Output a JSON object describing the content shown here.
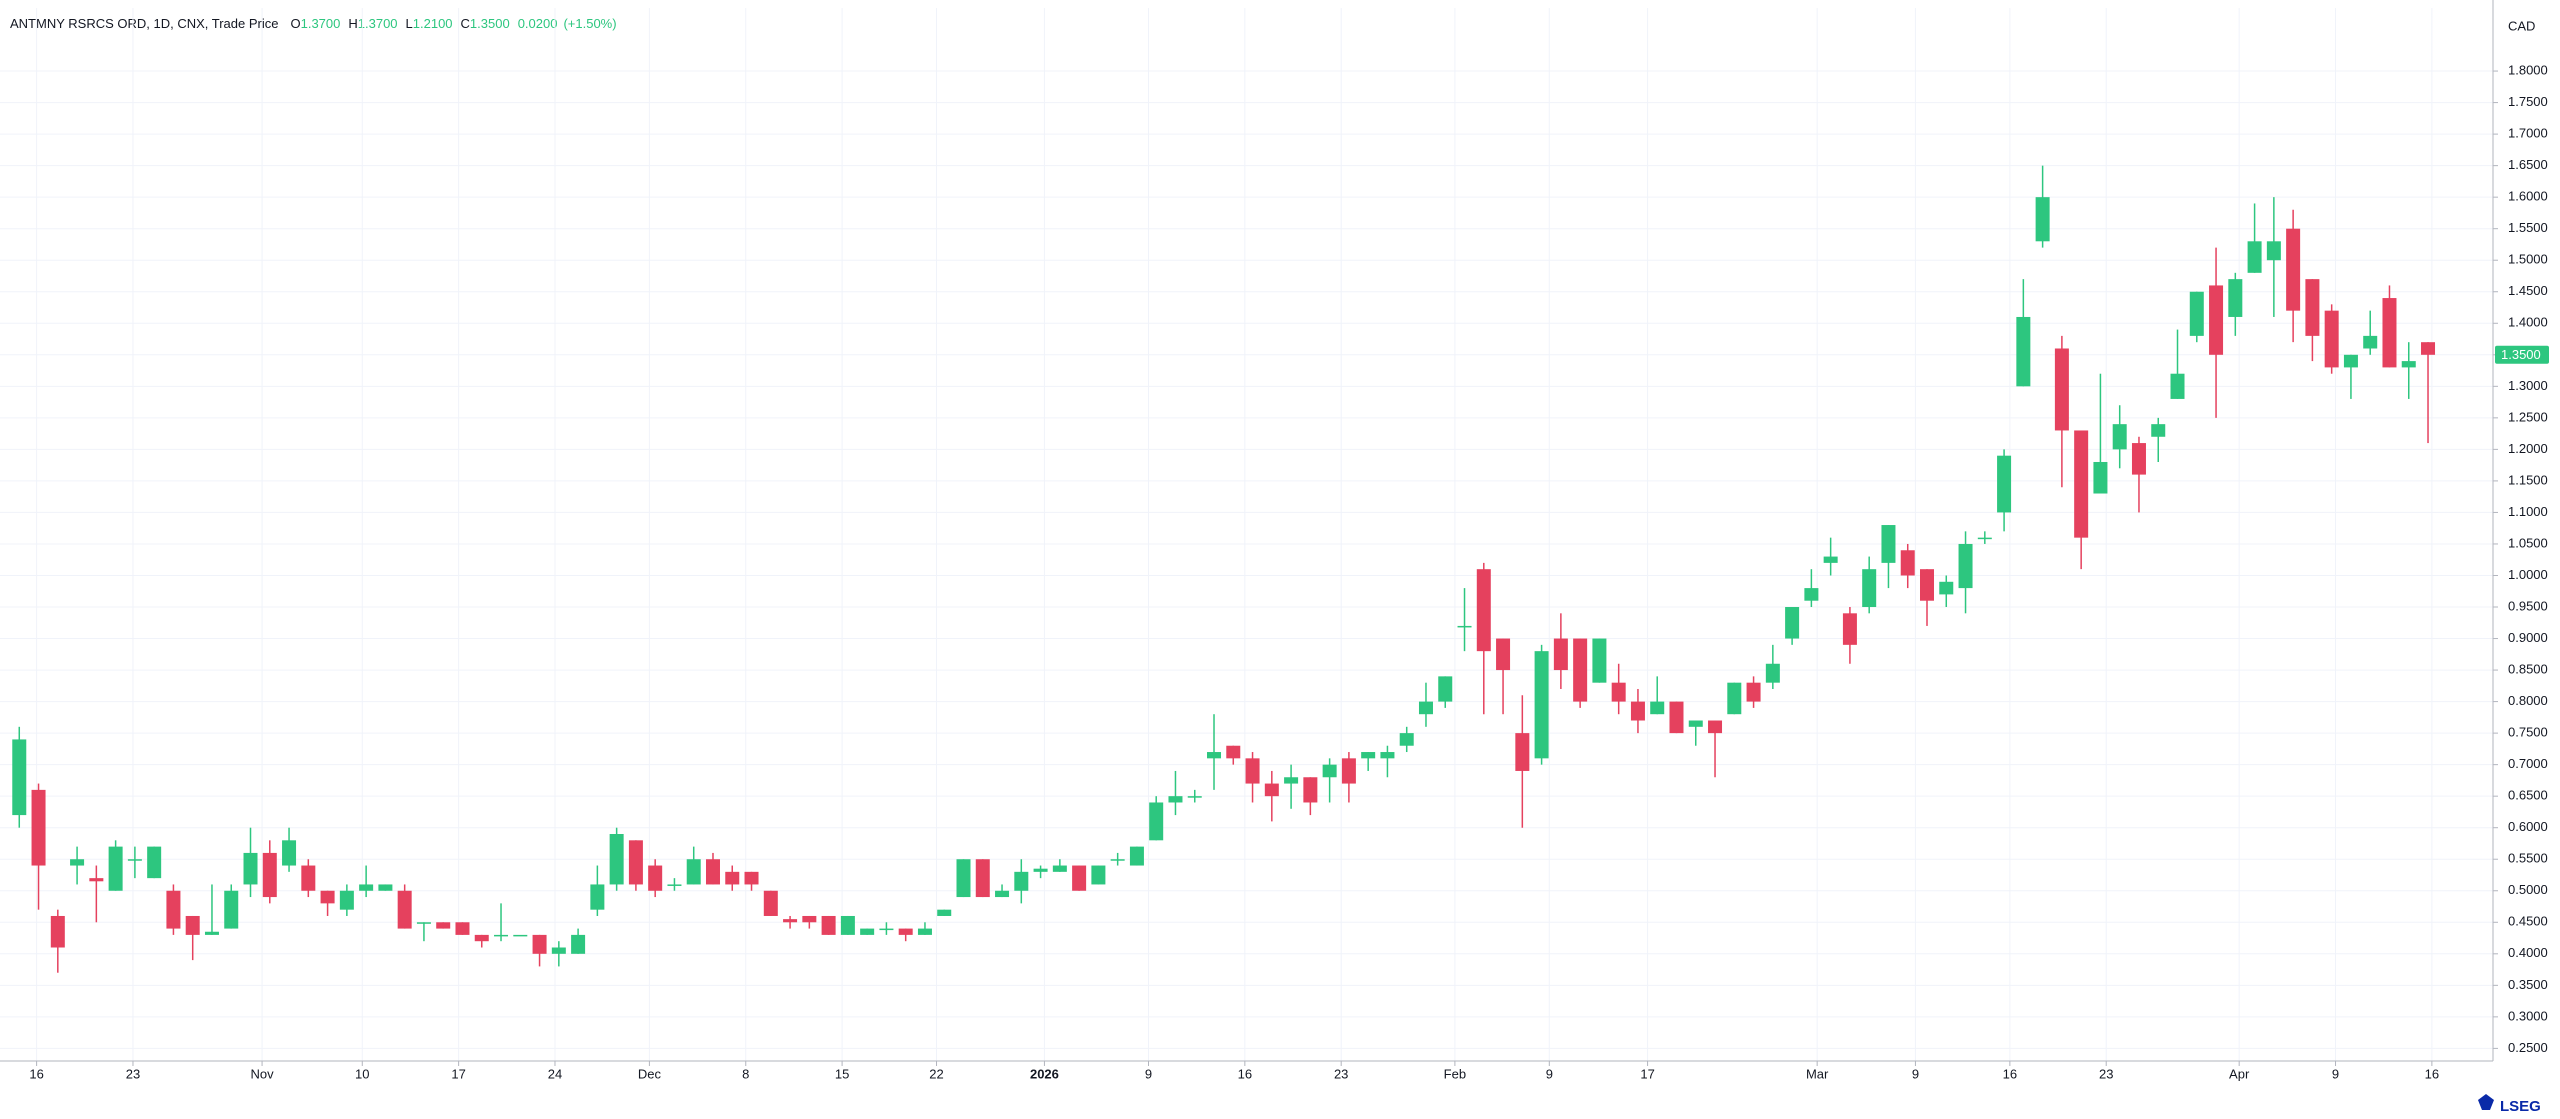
{
  "header": {
    "title": "ANTMNY RSRCS ORD, 1D, CNX, Trade Price",
    "ohlc": [
      {
        "key": "O",
        "value": "1.3700"
      },
      {
        "key": "H",
        "value": "1.3700"
      },
      {
        "key": "L",
        "value": "1.2100"
      },
      {
        "key": "C",
        "value": "1.3500"
      }
    ],
    "change": "0.0200",
    "change_pct": "(+1.50%)"
  },
  "currency": "CAD",
  "logo": "LSEG",
  "chart_data": {
    "type": "candlestick",
    "up_color": "#2dc67f",
    "down_color": "#e5415e",
    "grid": true,
    "open": [
      0.62,
      0.66,
      0.46,
      0.54,
      0.52,
      0.5,
      0.55,
      0.52,
      0.5,
      0.46,
      0.43,
      0.44,
      0.51,
      0.56,
      0.54,
      0.54,
      0.5,
      0.47,
      0.5,
      0.5,
      0.5,
      0.45,
      0.45,
      0.45,
      0.43,
      0.43,
      0.43,
      0.43,
      0.4,
      0.4,
      0.47,
      0.51,
      0.58,
      0.54,
      0.51,
      0.51,
      0.55,
      0.53,
      0.53,
      0.5,
      0.455,
      0.46,
      0.46,
      0.43,
      0.43,
      0.44,
      0.44,
      0.43,
      0.46,
      0.49,
      0.55,
      0.49,
      0.5,
      0.53,
      0.53,
      0.54,
      0.51,
      0.55,
      0.54,
      0.58,
      0.64,
      0.65,
      0.71,
      0.73,
      0.71,
      0.67,
      0.67,
      0.68,
      0.68,
      0.71,
      0.71,
      0.71,
      0.73,
      0.78,
      0.8,
      0.92,
      1.01,
      0.9,
      0.75,
      0.71,
      0.9,
      0.9,
      0.83,
      0.83,
      0.8,
      0.78,
      0.8,
      0.76,
      0.77,
      0.78,
      0.83,
      0.83,
      0.9,
      0.96,
      1.02,
      0.94,
      0.95,
      1.02,
      1.04,
      1.01,
      0.97,
      0.98,
      1.06,
      1.1,
      1.3,
      1.53,
      1.36,
      1.23,
      1.13,
      1.2,
      1.21,
      1.22,
      1.28,
      1.38,
      1.46,
      1.41,
      1.48,
      1.5,
      1.55,
      1.47,
      1.42,
      1.33,
      1.36,
      1.44,
      1.33,
      1.37
    ],
    "high": [
      0.76,
      0.67,
      0.47,
      0.57,
      0.54,
      0.58,
      0.57,
      0.57,
      0.51,
      0.46,
      0.51,
      0.51,
      0.6,
      0.58,
      0.6,
      0.55,
      0.5,
      0.51,
      0.54,
      0.51,
      0.51,
      0.45,
      0.45,
      0.45,
      0.43,
      0.48,
      0.43,
      0.43,
      0.42,
      0.44,
      0.54,
      0.6,
      0.58,
      0.55,
      0.52,
      0.57,
      0.56,
      0.54,
      0.53,
      0.5,
      0.46,
      0.46,
      0.46,
      0.46,
      0.44,
      0.45,
      0.44,
      0.45,
      0.47,
      0.55,
      0.55,
      0.51,
      0.55,
      0.54,
      0.55,
      0.54,
      0.54,
      0.56,
      0.57,
      0.65,
      0.69,
      0.66,
      0.78,
      0.73,
      0.72,
      0.69,
      0.7,
      0.68,
      0.71,
      0.72,
      0.72,
      0.73,
      0.76,
      0.83,
      0.84,
      0.98,
      1.02,
      0.9,
      0.81,
      0.89,
      0.94,
      0.9,
      0.9,
      0.86,
      0.82,
      0.84,
      0.8,
      0.77,
      0.77,
      0.83,
      0.84,
      0.89,
      0.95,
      1.01,
      1.06,
      0.95,
      1.03,
      1.08,
      1.05,
      1.01,
      1.0,
      1.07,
      1.07,
      1.2,
      1.47,
      1.65,
      1.38,
      1.23,
      1.32,
      1.27,
      1.22,
      1.25,
      1.39,
      1.45,
      1.52,
      1.48,
      1.59,
      1.6,
      1.58,
      1.47,
      1.43,
      1.35,
      1.42,
      1.46,
      1.37,
      1.37
    ],
    "low": [
      0.6,
      0.47,
      0.37,
      0.51,
      0.45,
      0.5,
      0.52,
      0.52,
      0.43,
      0.39,
      0.43,
      0.44,
      0.49,
      0.48,
      0.53,
      0.49,
      0.46,
      0.46,
      0.49,
      0.5,
      0.44,
      0.42,
      0.44,
      0.43,
      0.41,
      0.42,
      0.43,
      0.38,
      0.38,
      0.4,
      0.46,
      0.5,
      0.5,
      0.49,
      0.5,
      0.51,
      0.51,
      0.5,
      0.5,
      0.46,
      0.44,
      0.44,
      0.43,
      0.43,
      0.43,
      0.43,
      0.42,
      0.43,
      0.46,
      0.49,
      0.49,
      0.49,
      0.48,
      0.52,
      0.53,
      0.5,
      0.51,
      0.54,
      0.54,
      0.58,
      0.62,
      0.64,
      0.66,
      0.7,
      0.64,
      0.61,
      0.63,
      0.62,
      0.64,
      0.64,
      0.69,
      0.68,
      0.72,
      0.76,
      0.79,
      0.88,
      0.78,
      0.78,
      0.6,
      0.7,
      0.82,
      0.79,
      0.83,
      0.78,
      0.75,
      0.78,
      0.75,
      0.73,
      0.68,
      0.78,
      0.79,
      0.82,
      0.89,
      0.95,
      1.0,
      0.86,
      0.94,
      0.98,
      0.98,
      0.92,
      0.95,
      0.94,
      1.05,
      1.07,
      1.3,
      1.52,
      1.14,
      1.01,
      1.13,
      1.17,
      1.1,
      1.18,
      1.28,
      1.37,
      1.25,
      1.38,
      1.48,
      1.41,
      1.37,
      1.34,
      1.32,
      1.28,
      1.35,
      1.33,
      1.28,
      1.21
    ],
    "close": [
      0.74,
      0.54,
      0.41,
      0.55,
      0.515,
      0.57,
      0.55,
      0.57,
      0.44,
      0.43,
      0.435,
      0.5,
      0.56,
      0.49,
      0.58,
      0.5,
      0.48,
      0.5,
      0.51,
      0.51,
      0.44,
      0.45,
      0.44,
      0.43,
      0.42,
      0.43,
      0.43,
      0.4,
      0.41,
      0.43,
      0.51,
      0.59,
      0.51,
      0.5,
      0.51,
      0.55,
      0.51,
      0.51,
      0.51,
      0.46,
      0.45,
      0.45,
      0.43,
      0.46,
      0.44,
      0.44,
      0.43,
      0.44,
      0.47,
      0.55,
      0.49,
      0.5,
      0.53,
      0.535,
      0.54,
      0.5,
      0.54,
      0.55,
      0.57,
      0.64,
      0.65,
      0.65,
      0.72,
      0.71,
      0.67,
      0.65,
      0.68,
      0.64,
      0.7,
      0.67,
      0.72,
      0.72,
      0.75,
      0.8,
      0.84,
      0.92,
      0.88,
      0.85,
      0.69,
      0.88,
      0.85,
      0.8,
      0.9,
      0.8,
      0.77,
      0.8,
      0.75,
      0.77,
      0.75,
      0.83,
      0.8,
      0.86,
      0.95,
      0.98,
      1.03,
      0.89,
      1.01,
      1.08,
      1.0,
      0.96,
      0.99,
      1.05,
      1.06,
      1.19,
      1.41,
      1.6,
      1.23,
      1.06,
      1.18,
      1.24,
      1.16,
      1.24,
      1.32,
      1.45,
      1.35,
      1.47,
      1.53,
      1.53,
      1.42,
      1.38,
      1.33,
      1.35,
      1.38,
      1.33,
      1.34,
      1.35
    ],
    "xticks": [
      {
        "value": 0.9,
        "label": "16"
      },
      {
        "value": 5.9,
        "label": "23"
      },
      {
        "value": 12.6,
        "label": "Nov"
      },
      {
        "value": 17.8,
        "label": "10"
      },
      {
        "value": 22.8,
        "label": "17"
      },
      {
        "value": 27.8,
        "label": "24"
      },
      {
        "value": 32.7,
        "label": "Dec"
      },
      {
        "value": 37.7,
        "label": "8"
      },
      {
        "value": 42.7,
        "label": "15"
      },
      {
        "value": 47.6,
        "label": "22"
      },
      {
        "value": 53.2,
        "label": "2026"
      },
      {
        "value": 58.6,
        "label": "9"
      },
      {
        "value": 63.6,
        "label": "16"
      },
      {
        "value": 68.6,
        "label": "23"
      },
      {
        "value": 74.5,
        "label": "Feb"
      },
      {
        "value": 79.4,
        "label": "9"
      },
      {
        "value": 84.5,
        "label": "17"
      },
      {
        "value": 93.3,
        "label": "Mar"
      },
      {
        "value": 98.4,
        "label": "9"
      },
      {
        "value": 103.3,
        "label": "16"
      },
      {
        "value": 108.3,
        "label": "23"
      },
      {
        "value": 115.2,
        "label": "Apr"
      },
      {
        "value": 120.2,
        "label": "9"
      },
      {
        "value": 125.2,
        "label": "16"
      }
    ],
    "ylim": [
      0.23,
      1.9
    ],
    "yticks": [
      {
        "value": 0.25,
        "label": "0.2500"
      },
      {
        "value": 0.3,
        "label": "0.3000"
      },
      {
        "value": 0.35,
        "label": "0.3500"
      },
      {
        "value": 0.4,
        "label": "0.4000"
      },
      {
        "value": 0.45,
        "label": "0.4500"
      },
      {
        "value": 0.5,
        "label": "0.5000"
      },
      {
        "value": 0.55,
        "label": "0.5500"
      },
      {
        "value": 0.6,
        "label": "0.6000"
      },
      {
        "value": 0.65,
        "label": "0.6500"
      },
      {
        "value": 0.7,
        "label": "0.7000"
      },
      {
        "value": 0.75,
        "label": "0.7500"
      },
      {
        "value": 0.8,
        "label": "0.8000"
      },
      {
        "value": 0.85,
        "label": "0.8500"
      },
      {
        "value": 0.9,
        "label": "0.9000"
      },
      {
        "value": 0.95,
        "label": "0.9500"
      },
      {
        "value": 1.0,
        "label": "1.0000"
      },
      {
        "value": 1.05,
        "label": "1.0500"
      },
      {
        "value": 1.1,
        "label": "1.1000"
      },
      {
        "value": 1.15,
        "label": "1.1500"
      },
      {
        "value": 1.2,
        "label": "1.2000"
      },
      {
        "value": 1.25,
        "label": "1.2500"
      },
      {
        "value": 1.3,
        "label": "1.3000"
      },
      {
        "value": 1.35,
        "label": "1.3500"
      },
      {
        "value": 1.4,
        "label": "1.4000"
      },
      {
        "value": 1.45,
        "label": "1.4500"
      },
      {
        "value": 1.5,
        "label": "1.5000"
      },
      {
        "value": 1.55,
        "label": "1.5500"
      },
      {
        "value": 1.6,
        "label": "1.6000"
      },
      {
        "value": 1.65,
        "label": "1.6500"
      },
      {
        "value": 1.7,
        "label": "1.7000"
      },
      {
        "value": 1.75,
        "label": "1.7500"
      },
      {
        "value": 1.8,
        "label": "1.8000"
      }
    ],
    "last_price": {
      "value": 1.35,
      "label": "1.3500"
    }
  }
}
